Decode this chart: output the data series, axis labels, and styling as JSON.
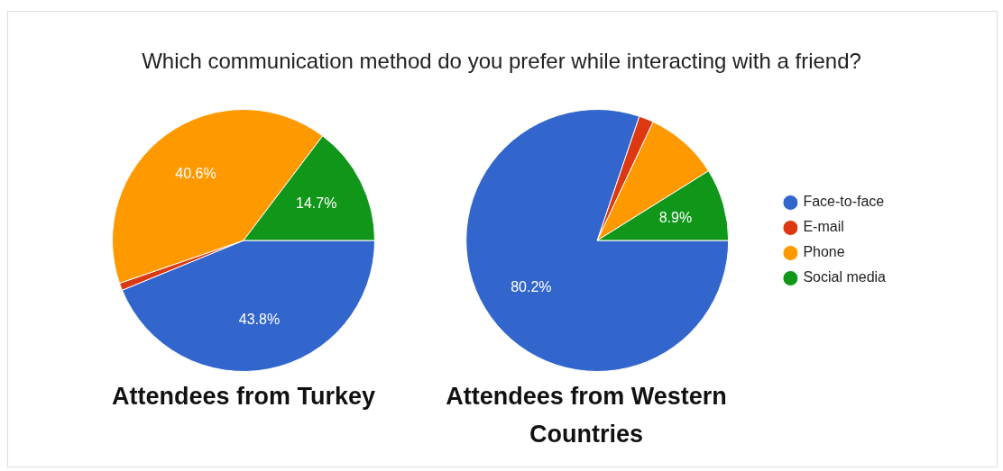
{
  "chart_data": [
    {
      "type": "pie",
      "title": "Which communication method do you prefer while interacting with a friend?",
      "xlabel": "Attendees from Turkey",
      "categories": [
        null,
        null,
        null,
        null
      ],
      "values": [
        43.8,
        0.9,
        40.6,
        14.7
      ],
      "colors": [
        "#3366cc",
        "#dc3912",
        "#ff9900",
        "#109618"
      ],
      "value_labels": [
        "43.8%",
        null,
        "40.6%",
        "14.7%"
      ],
      "legend": false
    },
    {
      "type": "pie",
      "xlabel": "Attendees from Western Countries",
      "categories": [
        "Face-to-face",
        "E-mail",
        "Phone",
        "Social media"
      ],
      "values": [
        80.2,
        1.8,
        9.1,
        8.9
      ],
      "colors": [
        "#3366cc",
        "#dc3912",
        "#ff9900",
        "#109618"
      ],
      "value_labels": [
        "80.2%",
        null,
        null,
        "8.9%"
      ],
      "legend": "right"
    }
  ]
}
